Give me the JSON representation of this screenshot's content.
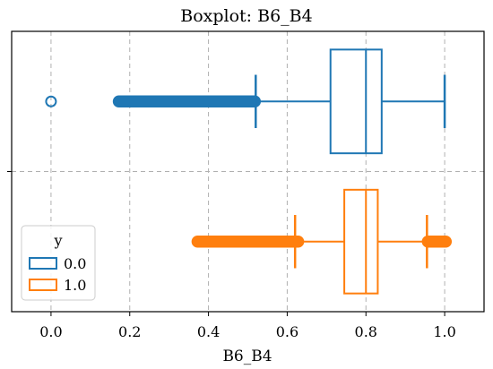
{
  "chart_data": {
    "type": "boxplot",
    "orientation": "horizontal",
    "title": "Boxplot: B6_B4",
    "xlabel": "B6_B4",
    "ylabel": "",
    "xlim": [
      -0.1,
      1.1
    ],
    "xticks": [
      0.0,
      0.2,
      0.4,
      0.6,
      0.8,
      1.0
    ],
    "xtick_labels": [
      "0.0",
      "0.2",
      "0.4",
      "0.6",
      "0.8",
      "1.0"
    ],
    "grid": true,
    "legend": {
      "title": "y",
      "placement": "lower-left"
    },
    "series": [
      {
        "name": "0.0",
        "color": "#1f77b4",
        "q1": 0.71,
        "median": 0.8,
        "q3": 0.84,
        "whisker_low": 0.52,
        "whisker_high": 1.0,
        "outliers_points": [
          0.0
        ],
        "outlier_range": [
          0.17,
          0.52
        ]
      },
      {
        "name": "1.0",
        "color": "#ff7f0e",
        "q1": 0.745,
        "median": 0.8,
        "q3": 0.83,
        "whisker_low": 0.62,
        "whisker_high": 0.955,
        "outliers_points": [],
        "outlier_range_low": [
          0.37,
          0.63
        ],
        "outlier_range_high": [
          0.955,
          1.005
        ]
      }
    ]
  }
}
